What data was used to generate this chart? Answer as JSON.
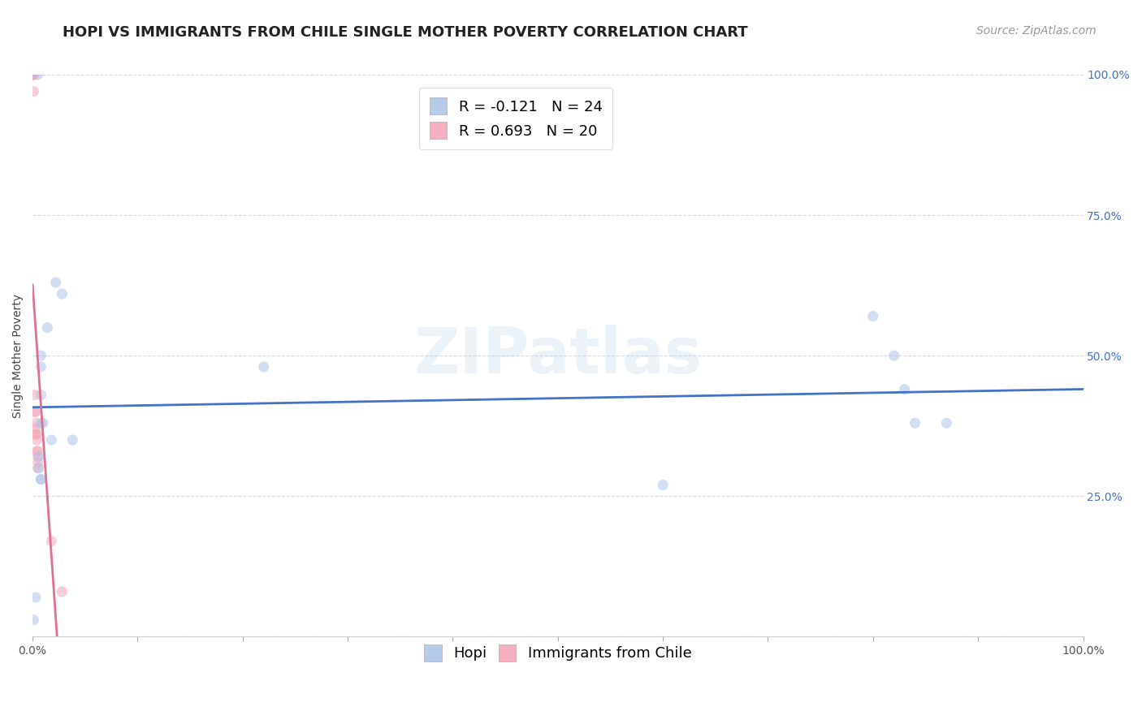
{
  "title": "HOPI VS IMMIGRANTS FROM CHILE SINGLE MOTHER POVERTY CORRELATION CHART",
  "source": "Source: ZipAtlas.com",
  "ylabel": "Single Mother Poverty",
  "watermark": "ZIPatlas",
  "hopi_x": [
    0.001,
    0.022,
    0.028,
    0.008,
    0.008,
    0.014,
    0.008,
    0.008,
    0.01,
    0.018,
    0.038,
    0.22,
    0.008,
    0.008,
    0.006,
    0.006,
    0.6,
    0.8,
    0.82,
    0.83,
    0.84,
    0.87,
    0.005,
    0.003
  ],
  "hopi_y": [
    0.03,
    0.63,
    0.61,
    0.5,
    0.48,
    0.55,
    0.43,
    0.38,
    0.38,
    0.35,
    0.35,
    0.48,
    0.28,
    0.28,
    0.32,
    0.3,
    0.27,
    0.57,
    0.5,
    0.44,
    0.38,
    0.38,
    1.0,
    0.07
  ],
  "chile_x": [
    0.001,
    0.001,
    0.001,
    0.001,
    0.001,
    0.002,
    0.002,
    0.003,
    0.003,
    0.003,
    0.003,
    0.004,
    0.004,
    0.004,
    0.005,
    0.005,
    0.005,
    0.005,
    0.018,
    0.028
  ],
  "chile_y": [
    1.0,
    1.0,
    1.0,
    1.0,
    0.97,
    0.43,
    0.4,
    0.4,
    0.38,
    0.37,
    0.36,
    0.36,
    0.35,
    0.33,
    0.33,
    0.32,
    0.31,
    0.3,
    0.17,
    0.08
  ],
  "hopi_color": "#aec6e8",
  "chile_color": "#f4a7b9",
  "hopi_line_color": "#4472c4",
  "chile_line_color": "#e07090",
  "hopi_R": -0.121,
  "hopi_N": 24,
  "chile_R": 0.693,
  "chile_N": 20,
  "xlim": [
    0.0,
    1.0
  ],
  "ylim": [
    0.0,
    1.0
  ],
  "xtick_positions": [
    0.0,
    0.1,
    0.2,
    0.3,
    0.4,
    0.5,
    0.6,
    0.7,
    0.8,
    0.9,
    1.0
  ],
  "xtick_labels_bottom": [
    "0.0%",
    "",
    "",
    "",
    "",
    "",
    "",
    "",
    "",
    "",
    "100.0%"
  ],
  "ytick_positions": [
    0.0,
    0.25,
    0.5,
    0.75,
    1.0
  ],
  "ytick_labels": [
    "",
    "25.0%",
    "50.0%",
    "75.0%",
    "100.0%"
  ],
  "background_color": "#ffffff",
  "grid_color": "#d8d8e0",
  "title_fontsize": 13,
  "axis_label_fontsize": 10,
  "tick_fontsize": 10,
  "legend_fontsize": 13,
  "source_fontsize": 10,
  "marker_size": 90,
  "marker_alpha": 0.55,
  "line_width": 2.0,
  "legend_label_hopi": "R = -0.121   N = 24",
  "legend_label_chile": "R = 0.693   N = 20",
  "bottom_legend_hopi": "Hopi",
  "bottom_legend_chile": "Immigrants from Chile"
}
